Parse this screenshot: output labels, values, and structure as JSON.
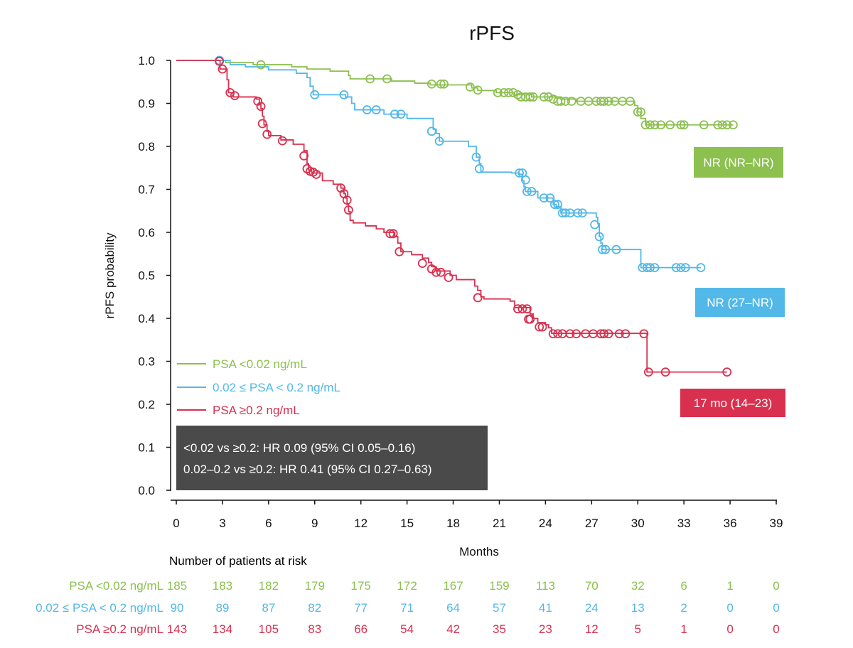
{
  "chart_data": {
    "type": "line",
    "title": "rPFS",
    "xlabel": "Months",
    "ylabel": "rPFS probability",
    "xlim": [
      0,
      39
    ],
    "ylim": [
      0,
      1
    ],
    "x_ticks": [
      "0",
      "3",
      "6",
      "9",
      "12",
      "15",
      "18",
      "21",
      "24",
      "27",
      "30",
      "33",
      "36",
      "39"
    ],
    "y_ticks": [
      "0.0",
      "0.1",
      "0.2",
      "0.3",
      "0.4",
      "0.5",
      "0.6",
      "0.7",
      "0.8",
      "0.9",
      "1.0"
    ],
    "legend_position": "bottom-left",
    "series": [
      {
        "name": "PSA <0.02 ng/mL",
        "color": "#8cc04f",
        "median_label": "NR (NR–NR)",
        "steps": [
          [
            0,
            1.0
          ],
          [
            2.7,
            1.0
          ],
          [
            3.2,
            0.995
          ],
          [
            5.0,
            0.99
          ],
          [
            7.5,
            0.985
          ],
          [
            8.5,
            0.98
          ],
          [
            10.0,
            0.975
          ],
          [
            11.2,
            0.965
          ],
          [
            11.3,
            0.957
          ],
          [
            14.0,
            0.952
          ],
          [
            15.5,
            0.947
          ],
          [
            16.5,
            0.943
          ],
          [
            19.2,
            0.936
          ],
          [
            19.6,
            0.93
          ],
          [
            20.8,
            0.925
          ],
          [
            22.0,
            0.92
          ],
          [
            23.1,
            0.915
          ],
          [
            25.0,
            0.91
          ],
          [
            26.0,
            0.905
          ],
          [
            29.8,
            0.895
          ],
          [
            30.0,
            0.88
          ],
          [
            30.2,
            0.865
          ],
          [
            30.5,
            0.85
          ]
        ],
        "censors": [
          [
            2.8,
            1.0
          ],
          [
            5.5,
            0.99
          ],
          [
            12.6,
            0.957
          ],
          [
            13.7,
            0.957
          ],
          [
            16.6,
            0.945
          ],
          [
            17.2,
            0.945
          ],
          [
            17.4,
            0.945
          ],
          [
            19.1,
            0.938
          ],
          [
            19.6,
            0.931
          ],
          [
            20.9,
            0.925
          ],
          [
            21.3,
            0.925
          ],
          [
            21.6,
            0.925
          ],
          [
            21.9,
            0.925
          ],
          [
            22.2,
            0.92
          ],
          [
            22.4,
            0.915
          ],
          [
            22.7,
            0.915
          ],
          [
            23.0,
            0.915
          ],
          [
            23.2,
            0.915
          ],
          [
            23.9,
            0.915
          ],
          [
            24.2,
            0.915
          ],
          [
            24.5,
            0.91
          ],
          [
            24.8,
            0.905
          ],
          [
            25.0,
            0.905
          ],
          [
            25.3,
            0.905
          ],
          [
            25.7,
            0.905
          ],
          [
            26.3,
            0.905
          ],
          [
            26.8,
            0.905
          ],
          [
            27.3,
            0.905
          ],
          [
            27.6,
            0.905
          ],
          [
            27.8,
            0.905
          ],
          [
            28.1,
            0.905
          ],
          [
            28.5,
            0.905
          ],
          [
            29.0,
            0.905
          ],
          [
            29.5,
            0.905
          ],
          [
            30.0,
            0.88
          ],
          [
            30.2,
            0.88
          ],
          [
            30.5,
            0.85
          ],
          [
            30.8,
            0.85
          ],
          [
            31.1,
            0.85
          ],
          [
            31.5,
            0.85
          ],
          [
            32.1,
            0.85
          ],
          [
            32.8,
            0.85
          ],
          [
            33.0,
            0.85
          ],
          [
            34.3,
            0.85
          ],
          [
            35.2,
            0.85
          ],
          [
            35.5,
            0.85
          ],
          [
            35.8,
            0.85
          ],
          [
            36.2,
            0.85
          ]
        ],
        "end_x": 36.2
      },
      {
        "name": "0.02 ≤ PSA < 0.2 ng/mL",
        "color": "#52b8e8",
        "median_label": "NR (27–NR)",
        "steps": [
          [
            0,
            1.0
          ],
          [
            2.7,
            1.0
          ],
          [
            3.5,
            0.99
          ],
          [
            4.5,
            0.985
          ],
          [
            6.0,
            0.978
          ],
          [
            7.8,
            0.97
          ],
          [
            8.5,
            0.96
          ],
          [
            8.7,
            0.94
          ],
          [
            8.9,
            0.92
          ],
          [
            11.0,
            0.915
          ],
          [
            11.4,
            0.9
          ],
          [
            11.6,
            0.885
          ],
          [
            13.5,
            0.875
          ],
          [
            15.0,
            0.865
          ],
          [
            16.7,
            0.84
          ],
          [
            16.9,
            0.83
          ],
          [
            17.1,
            0.812
          ],
          [
            19.0,
            0.8
          ],
          [
            19.5,
            0.775
          ],
          [
            19.7,
            0.76
          ],
          [
            19.8,
            0.74
          ],
          [
            21.8,
            0.738
          ],
          [
            22.3,
            0.735
          ],
          [
            22.5,
            0.72
          ],
          [
            22.6,
            0.706
          ],
          [
            22.7,
            0.695
          ],
          [
            23.5,
            0.68
          ],
          [
            24.5,
            0.665
          ],
          [
            24.7,
            0.66
          ],
          [
            25.0,
            0.645
          ],
          [
            27.3,
            0.635
          ],
          [
            27.4,
            0.62
          ],
          [
            27.5,
            0.59
          ],
          [
            27.6,
            0.575
          ],
          [
            27.7,
            0.56
          ],
          [
            30.2,
            0.518
          ]
        ],
        "censors": [
          [
            2.8,
            1.0
          ],
          [
            9.0,
            0.92
          ],
          [
            10.9,
            0.92
          ],
          [
            12.4,
            0.885
          ],
          [
            13.0,
            0.885
          ],
          [
            14.2,
            0.875
          ],
          [
            14.6,
            0.875
          ],
          [
            16.6,
            0.835
          ],
          [
            17.1,
            0.812
          ],
          [
            19.5,
            0.775
          ],
          [
            19.7,
            0.748
          ],
          [
            22.3,
            0.738
          ],
          [
            22.5,
            0.738
          ],
          [
            22.7,
            0.722
          ],
          [
            22.8,
            0.695
          ],
          [
            23.1,
            0.695
          ],
          [
            23.9,
            0.68
          ],
          [
            24.3,
            0.68
          ],
          [
            24.6,
            0.665
          ],
          [
            24.8,
            0.665
          ],
          [
            25.1,
            0.645
          ],
          [
            25.3,
            0.645
          ],
          [
            25.6,
            0.645
          ],
          [
            26.1,
            0.645
          ],
          [
            26.4,
            0.645
          ],
          [
            27.2,
            0.618
          ],
          [
            27.5,
            0.59
          ],
          [
            27.7,
            0.56
          ],
          [
            27.9,
            0.56
          ],
          [
            28.6,
            0.56
          ],
          [
            30.3,
            0.518
          ],
          [
            30.6,
            0.518
          ],
          [
            30.8,
            0.518
          ],
          [
            31.1,
            0.518
          ],
          [
            32.5,
            0.518
          ],
          [
            32.8,
            0.518
          ],
          [
            33.1,
            0.518
          ],
          [
            34.1,
            0.518
          ]
        ],
        "end_x": 34.1
      },
      {
        "name": "PSA ≥0.2 ng/mL",
        "color": "#d9304f",
        "median_label": "17 mo (14–23)",
        "steps": [
          [
            0,
            1.0
          ],
          [
            2.7,
            1.0
          ],
          [
            2.85,
            0.98
          ],
          [
            3.3,
            0.955
          ],
          [
            3.4,
            0.925
          ],
          [
            3.7,
            0.915
          ],
          [
            5.2,
            0.91
          ],
          [
            5.4,
            0.898
          ],
          [
            5.5,
            0.888
          ],
          [
            5.6,
            0.87
          ],
          [
            5.7,
            0.85
          ],
          [
            5.9,
            0.835
          ],
          [
            6.0,
            0.825
          ],
          [
            6.8,
            0.815
          ],
          [
            7.6,
            0.805
          ],
          [
            8.3,
            0.79
          ],
          [
            8.5,
            0.76
          ],
          [
            8.6,
            0.745
          ],
          [
            8.8,
            0.738
          ],
          [
            9.5,
            0.72
          ],
          [
            10.2,
            0.712
          ],
          [
            10.7,
            0.703
          ],
          [
            10.9,
            0.69
          ],
          [
            11.0,
            0.68
          ],
          [
            11.1,
            0.665
          ],
          [
            11.2,
            0.648
          ],
          [
            11.3,
            0.628
          ],
          [
            11.5,
            0.622
          ],
          [
            12.3,
            0.615
          ],
          [
            13.0,
            0.608
          ],
          [
            13.5,
            0.6
          ],
          [
            14.2,
            0.59
          ],
          [
            14.4,
            0.575
          ],
          [
            14.6,
            0.555
          ],
          [
            15.3,
            0.548
          ],
          [
            16.0,
            0.54
          ],
          [
            16.4,
            0.53
          ],
          [
            16.6,
            0.52
          ],
          [
            16.9,
            0.51
          ],
          [
            17.8,
            0.5
          ],
          [
            18.2,
            0.49
          ],
          [
            19.4,
            0.475
          ],
          [
            19.6,
            0.465
          ],
          [
            19.8,
            0.45
          ],
          [
            20.0,
            0.445
          ],
          [
            21.7,
            0.44
          ],
          [
            22.0,
            0.425
          ],
          [
            23.0,
            0.41
          ],
          [
            23.2,
            0.4
          ],
          [
            23.5,
            0.39
          ],
          [
            24.0,
            0.385
          ],
          [
            24.2,
            0.378
          ],
          [
            24.4,
            0.365
          ],
          [
            30.6,
            0.275
          ]
        ],
        "censors": [
          [
            2.8,
            0.998
          ],
          [
            3.0,
            0.98
          ],
          [
            3.5,
            0.925
          ],
          [
            3.8,
            0.918
          ],
          [
            5.3,
            0.905
          ],
          [
            5.5,
            0.893
          ],
          [
            5.6,
            0.853
          ],
          [
            5.9,
            0.828
          ],
          [
            6.9,
            0.813
          ],
          [
            8.3,
            0.778
          ],
          [
            8.5,
            0.748
          ],
          [
            8.7,
            0.742
          ],
          [
            8.9,
            0.74
          ],
          [
            9.1,
            0.735
          ],
          [
            10.7,
            0.703
          ],
          [
            10.9,
            0.69
          ],
          [
            11.1,
            0.675
          ],
          [
            11.2,
            0.652
          ],
          [
            13.9,
            0.597
          ],
          [
            14.1,
            0.597
          ],
          [
            14.5,
            0.555
          ],
          [
            16.0,
            0.528
          ],
          [
            16.6,
            0.515
          ],
          [
            16.9,
            0.507
          ],
          [
            17.2,
            0.507
          ],
          [
            17.7,
            0.495
          ],
          [
            19.6,
            0.448
          ],
          [
            22.2,
            0.422
          ],
          [
            22.5,
            0.422
          ],
          [
            22.8,
            0.422
          ],
          [
            22.9,
            0.398
          ],
          [
            23.0,
            0.398
          ],
          [
            23.6,
            0.38
          ],
          [
            23.8,
            0.38
          ],
          [
            24.5,
            0.364
          ],
          [
            24.8,
            0.364
          ],
          [
            25.1,
            0.364
          ],
          [
            25.6,
            0.364
          ],
          [
            26.0,
            0.364
          ],
          [
            26.6,
            0.364
          ],
          [
            27.1,
            0.364
          ],
          [
            27.6,
            0.364
          ],
          [
            27.8,
            0.364
          ],
          [
            28.1,
            0.364
          ],
          [
            28.8,
            0.364
          ],
          [
            29.2,
            0.364
          ],
          [
            30.4,
            0.364
          ],
          [
            30.7,
            0.275
          ],
          [
            31.8,
            0.275
          ],
          [
            35.8,
            0.275
          ]
        ],
        "end_x": 35.8
      }
    ],
    "hr_lines": [
      "<0.02 vs ≥0.2: HR 0.09 (95% CI 0.05–0.16)",
      "0.02–0.2 vs ≥0.2: HR 0.41 (95% CI 0.27–0.63)"
    ],
    "risk_table": {
      "title": "Number of patients at risk",
      "rows": [
        {
          "label": "PSA <0.02 ng/mL",
          "color": "#8cc04f",
          "values": [
            "185",
            "183",
            "182",
            "179",
            "175",
            "172",
            "167",
            "159",
            "113",
            "70",
            "32",
            "6",
            "1",
            "0"
          ]
        },
        {
          "label": "0.02 ≤ PSA < 0.2 ng/mL",
          "color": "#52b8e8",
          "values": [
            "90",
            "89",
            "87",
            "82",
            "77",
            "71",
            "64",
            "57",
            "41",
            "24",
            "13",
            "2",
            "0",
            "0"
          ]
        },
        {
          "label": "PSA ≥0.2 ng/mL",
          "color": "#d9304f",
          "values": [
            "143",
            "134",
            "105",
            "83",
            "66",
            "54",
            "42",
            "35",
            "23",
            "12",
            "5",
            "1",
            "0",
            "0"
          ]
        }
      ]
    }
  }
}
